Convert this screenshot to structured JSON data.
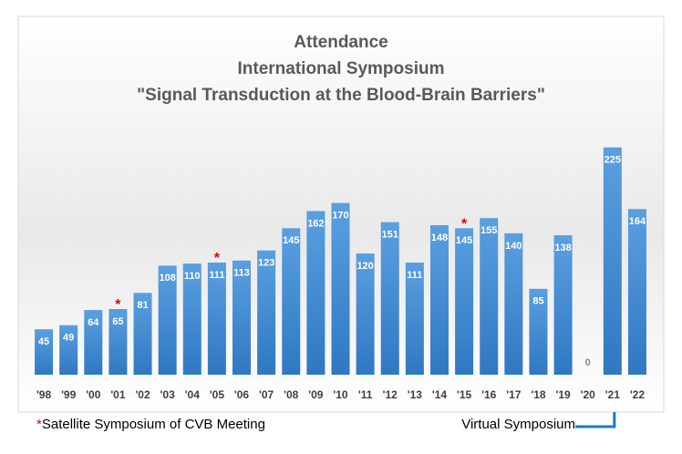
{
  "chart_data": {
    "type": "bar",
    "title": [
      "Attendance",
      "International Symposium",
      "\"Signal Transduction at the Blood-Brain Barriers\""
    ],
    "categories": [
      "'98",
      "'99",
      "'00",
      "'01",
      "'02",
      "'03",
      "'04",
      "'05",
      "'06",
      "'07",
      "'08",
      "'09",
      "'10",
      "'11",
      "'12",
      "'13",
      "'14",
      "'15",
      "'16",
      "'17",
      "'18",
      "'19",
      "'20",
      "'21",
      "'22"
    ],
    "values": [
      45,
      49,
      64,
      65,
      81,
      108,
      110,
      111,
      113,
      123,
      145,
      162,
      170,
      120,
      151,
      111,
      148,
      145,
      155,
      140,
      85,
      138,
      0,
      225,
      164
    ],
    "color": "#3f86cc",
    "ylim": [
      0,
      250
    ],
    "annotations": [
      {
        "at": 3,
        "text": "*"
      },
      {
        "at": 7,
        "text": "*"
      },
      {
        "at": 17,
        "text": "*"
      }
    ],
    "footnote": {
      "mark": "*",
      "text": "Satellite  Symposium of CVB Meeting"
    },
    "callout": {
      "at": 23,
      "text": "Virtual Symposium"
    }
  }
}
